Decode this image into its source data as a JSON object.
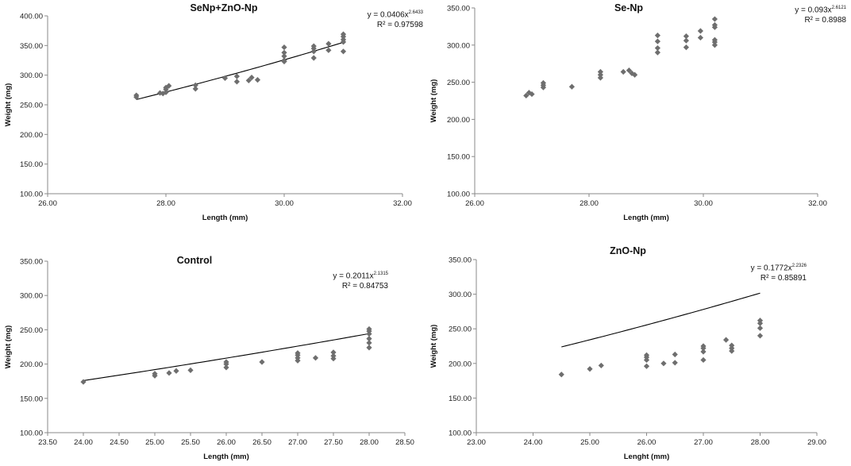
{
  "colors": {
    "marker": "#6e6e6e",
    "axis": "#8a8a8a",
    "trendline": "#000000"
  },
  "chart_data": [
    {
      "type": "scatter",
      "title": "SeNp+ZnO-Np",
      "xlabel": "Length (mm)",
      "ylabel": "Weight (mg)",
      "xlim": [
        26,
        32
      ],
      "ylim": [
        100,
        400
      ],
      "xticks": [
        26,
        28,
        30,
        32
      ],
      "xtick_labels": [
        "26.00",
        "28.00",
        "30.00",
        "32.00"
      ],
      "yticks": [
        100,
        150,
        200,
        250,
        300,
        350,
        400
      ],
      "ytick_labels": [
        "100.00",
        "150.00",
        "200.00",
        "250.00",
        "300.00",
        "350.00",
        "400.00"
      ],
      "equation": {
        "prefix": "y = 0.0406x",
        "exponent": "2.6433",
        "r2": "R² = 0.97598"
      },
      "trendline": {
        "a": 0.0406,
        "b": 2.6433,
        "x_range": [
          27.5,
          31
        ]
      },
      "points": [
        [
          27.5,
          266
        ],
        [
          27.5,
          263
        ],
        [
          27.9,
          270
        ],
        [
          27.95,
          269
        ],
        [
          28.0,
          271
        ],
        [
          28.0,
          276
        ],
        [
          28.0,
          279
        ],
        [
          28.05,
          282
        ],
        [
          28.5,
          283
        ],
        [
          28.5,
          277
        ],
        [
          29.0,
          295
        ],
        [
          29.2,
          298
        ],
        [
          29.2,
          289
        ],
        [
          29.4,
          291
        ],
        [
          29.45,
          296
        ],
        [
          29.55,
          292
        ],
        [
          30.0,
          347
        ],
        [
          30.0,
          338
        ],
        [
          30.0,
          332
        ],
        [
          30.0,
          325
        ],
        [
          30.0,
          323
        ],
        [
          30.5,
          349
        ],
        [
          30.5,
          345
        ],
        [
          30.5,
          340
        ],
        [
          30.5,
          329
        ],
        [
          30.75,
          353
        ],
        [
          30.75,
          342
        ],
        [
          31.0,
          369
        ],
        [
          31.0,
          365
        ],
        [
          31.0,
          360
        ],
        [
          31.0,
          356
        ],
        [
          31.0,
          340
        ]
      ]
    },
    {
      "type": "scatter",
      "title": "Se-Np",
      "xlabel": "Length (mm)",
      "ylabel": "Weight (mg)",
      "xlim": [
        26,
        32
      ],
      "ylim": [
        100,
        350
      ],
      "xticks": [
        26,
        28,
        30,
        32
      ],
      "xtick_labels": [
        "26.00",
        "28.00",
        "30.00",
        "32.00"
      ],
      "yticks": [
        100,
        150,
        200,
        250,
        300,
        350
      ],
      "ytick_labels": [
        "100.00",
        "150.00",
        "200.00",
        "250.00",
        "300.00",
        "350.00"
      ],
      "equation": {
        "prefix": "y = 0.093x",
        "exponent": "2.6121",
        "r2": "R² = 0.8988"
      },
      "trendline": {
        "a": 0.093,
        "b": 2.6121,
        "x_range": [
          26.9,
          30.2
        ]
      },
      "points": [
        [
          26.9,
          232
        ],
        [
          26.95,
          236
        ],
        [
          27.0,
          234
        ],
        [
          27.2,
          249
        ],
        [
          27.2,
          246
        ],
        [
          27.2,
          243
        ],
        [
          27.7,
          244
        ],
        [
          28.2,
          264
        ],
        [
          28.2,
          260
        ],
        [
          28.2,
          256
        ],
        [
          28.6,
          264
        ],
        [
          28.7,
          266
        ],
        [
          28.75,
          262
        ],
        [
          28.8,
          260
        ],
        [
          29.2,
          313
        ],
        [
          29.2,
          305
        ],
        [
          29.2,
          296
        ],
        [
          29.2,
          290
        ],
        [
          29.7,
          312
        ],
        [
          29.7,
          306
        ],
        [
          29.7,
          297
        ],
        [
          29.95,
          319
        ],
        [
          29.95,
          310
        ],
        [
          30.2,
          335
        ],
        [
          30.2,
          327
        ],
        [
          30.2,
          324
        ],
        [
          30.2,
          307
        ],
        [
          30.2,
          304
        ],
        [
          30.2,
          300
        ]
      ]
    },
    {
      "type": "scatter",
      "title": "Control",
      "xlabel": "Length (mm)",
      "ylabel": "Weight (mg)",
      "xlim": [
        23.5,
        28.5
      ],
      "ylim": [
        100,
        350
      ],
      "xticks": [
        23.5,
        24,
        24.5,
        25,
        25.5,
        26,
        26.5,
        27,
        27.5,
        28,
        28.5
      ],
      "xtick_labels": [
        "23.50",
        "24.00",
        "24.50",
        "25.00",
        "25.50",
        "26.00",
        "26.50",
        "27.00",
        "27.50",
        "28.00",
        "28.50"
      ],
      "yticks": [
        100,
        150,
        200,
        250,
        300,
        350
      ],
      "ytick_labels": [
        "100.00",
        "150.00",
        "200.00",
        "250.00",
        "300.00",
        "350.00"
      ],
      "equation": {
        "prefix": "y = 0.2011x",
        "exponent": "2.1315",
        "r2": "R² = 0.84753"
      },
      "trendline": {
        "a": 0.2011,
        "b": 2.1315,
        "x_range": [
          24,
          28
        ]
      },
      "points": [
        [
          24.0,
          174
        ],
        [
          25.0,
          186
        ],
        [
          25.0,
          183
        ],
        [
          25.2,
          187
        ],
        [
          25.3,
          190
        ],
        [
          25.5,
          191
        ],
        [
          26.0,
          203
        ],
        [
          26.0,
          200
        ],
        [
          26.0,
          195
        ],
        [
          26.5,
          203
        ],
        [
          27.0,
          216
        ],
        [
          27.0,
          213
        ],
        [
          27.0,
          209
        ],
        [
          27.0,
          205
        ],
        [
          27.25,
          209
        ],
        [
          27.5,
          217
        ],
        [
          27.5,
          212
        ],
        [
          27.5,
          208
        ],
        [
          28.0,
          251
        ],
        [
          28.0,
          248
        ],
        [
          28.0,
          244
        ],
        [
          28.0,
          237
        ],
        [
          28.0,
          231
        ],
        [
          28.0,
          224
        ]
      ]
    },
    {
      "type": "scatter",
      "title": "ZnO-Np",
      "xlabel": "Lenght (mm)",
      "ylabel": "Weight (mg)",
      "xlim": [
        23,
        29
      ],
      "ylim": [
        100,
        350
      ],
      "xticks": [
        23,
        24,
        25,
        26,
        27,
        28,
        29
      ],
      "xtick_labels": [
        "23.00",
        "24.00",
        "25.00",
        "26.00",
        "27.00",
        "28.00",
        "29.00"
      ],
      "yticks": [
        100,
        150,
        200,
        250,
        300,
        350
      ],
      "ytick_labels": [
        "100.00",
        "150.00",
        "200.00",
        "250.00",
        "300.00",
        "350.00"
      ],
      "equation": {
        "prefix": "y = 0.1772x",
        "exponent": "2.2326",
        "r2": "R² = 0.85891"
      },
      "trendline": {
        "a": 0.1772,
        "b": 2.2326,
        "x_range": [
          24.5,
          28
        ]
      },
      "points": [
        [
          24.5,
          184
        ],
        [
          25.0,
          192
        ],
        [
          25.2,
          197
        ],
        [
          26.0,
          212
        ],
        [
          26.0,
          209
        ],
        [
          26.0,
          205
        ],
        [
          26.0,
          196
        ],
        [
          26.3,
          200
        ],
        [
          26.5,
          213
        ],
        [
          26.5,
          201
        ],
        [
          27.0,
          225
        ],
        [
          27.0,
          222
        ],
        [
          27.0,
          217
        ],
        [
          27.0,
          205
        ],
        [
          27.4,
          234
        ],
        [
          27.5,
          226
        ],
        [
          27.5,
          222
        ],
        [
          27.5,
          218
        ],
        [
          28.0,
          262
        ],
        [
          28.0,
          258
        ],
        [
          28.0,
          251
        ],
        [
          28.0,
          240
        ]
      ]
    }
  ]
}
